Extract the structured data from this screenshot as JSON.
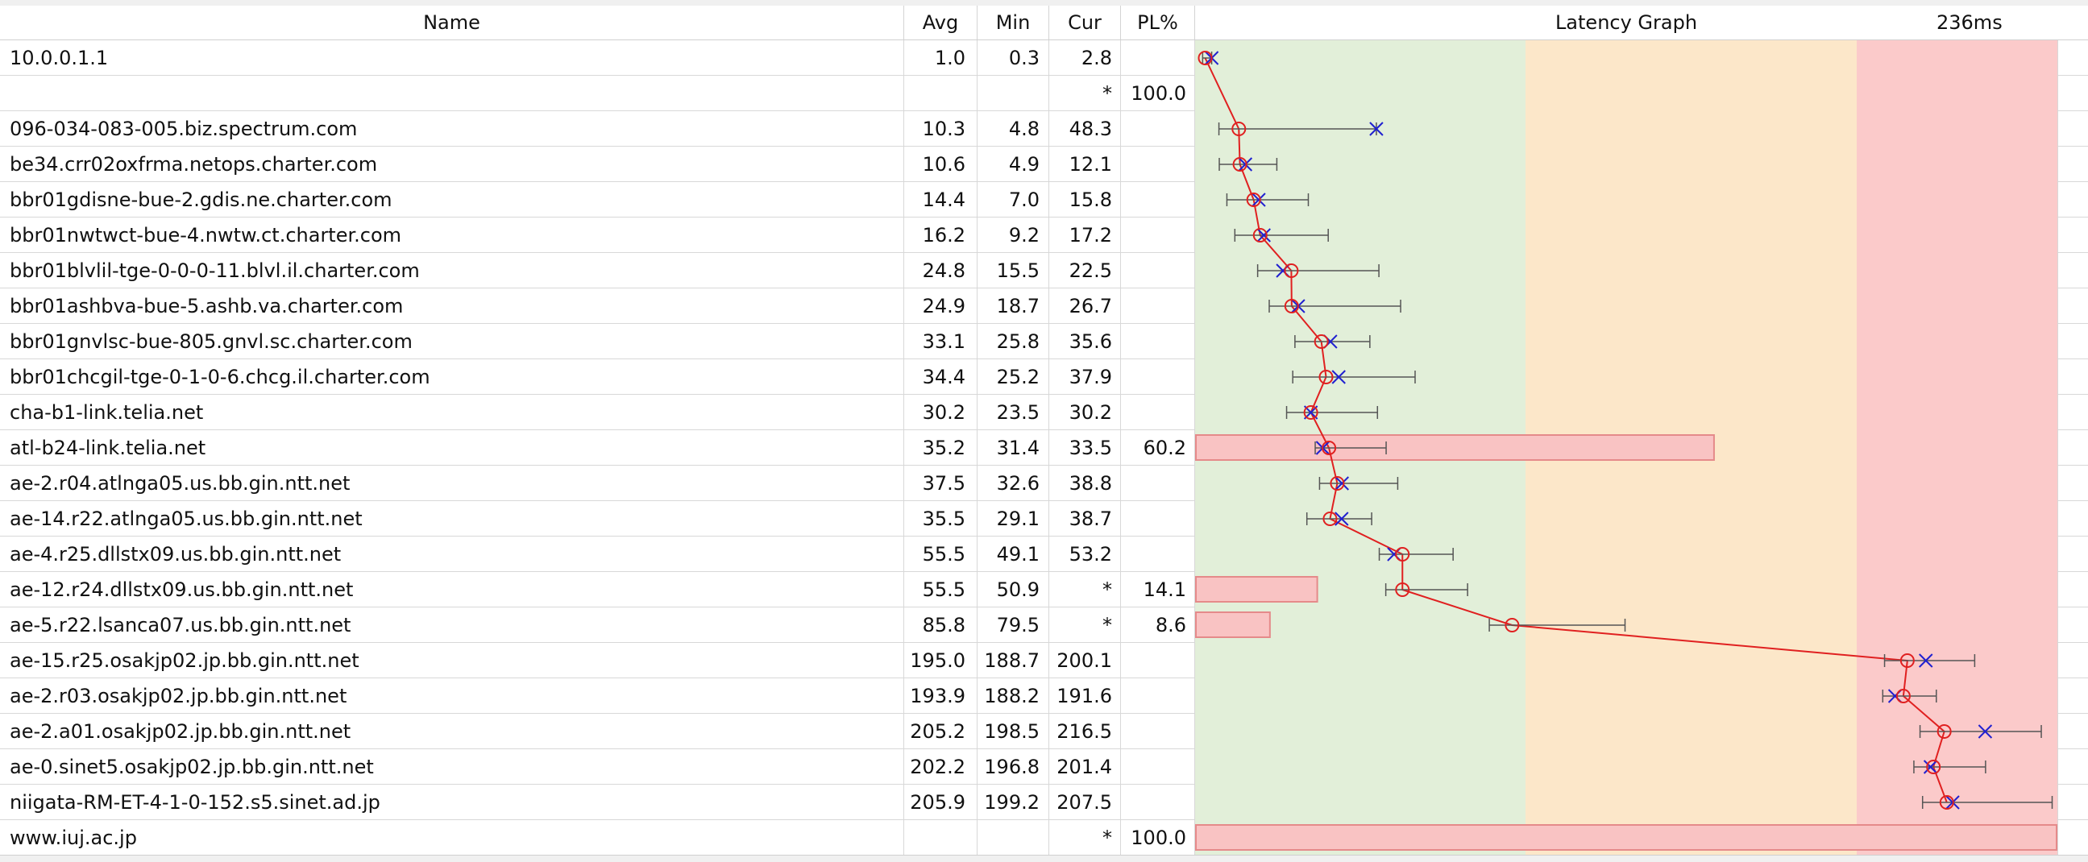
{
  "header": {
    "name": "Name",
    "avg": "Avg",
    "min": "Min",
    "cur": "Cur",
    "pl": "PL%",
    "graph": "Latency Graph",
    "scale": "236ms"
  },
  "graph": {
    "max_ms": 236,
    "band_colors": {
      "good": "#e2efd9",
      "warn": "#fce7c9",
      "bad": "#fbcaca"
    },
    "band_limits_ms": [
      100,
      200,
      236
    ],
    "loss_bar_color": "#f9c3c3",
    "loss_bar_border": "#e58a8a",
    "avg_marker_color": "#e02020",
    "cur_marker_color": "#2020d0",
    "whisker_color": "#555555"
  },
  "hops": [
    {
      "name": "10.0.0.1.1",
      "avg": "1.0",
      "min": "0.3",
      "cur": "2.8",
      "pl": "",
      "avg_ms": 1.0,
      "min_ms": 0.3,
      "max_ms": 2.8,
      "cur_ms": 2.8,
      "pl_pct": 0
    },
    {
      "name": "",
      "avg": "",
      "min": "",
      "cur": "*",
      "pl": "100.0",
      "avg_ms": null,
      "min_ms": null,
      "max_ms": null,
      "cur_ms": null,
      "pl_pct": 100,
      "no_bar": true
    },
    {
      "name": "096-034-083-005.biz.spectrum.com",
      "avg": "10.3",
      "min": "4.8",
      "cur": "48.3",
      "pl": "",
      "avg_ms": 10.3,
      "min_ms": 4.8,
      "max_ms": 48.3,
      "cur_ms": 48.3,
      "pl_pct": 0
    },
    {
      "name": "be34.crr02oxfrma.netops.charter.com",
      "avg": "10.6",
      "min": "4.9",
      "cur": "12.1",
      "pl": "",
      "avg_ms": 10.6,
      "min_ms": 4.9,
      "max_ms": 20.8,
      "cur_ms": 12.1,
      "pl_pct": 0
    },
    {
      "name": "bbr01gdisne-bue-2.gdis.ne.charter.com",
      "avg": "14.4",
      "min": "7.0",
      "cur": "15.8",
      "pl": "",
      "avg_ms": 14.4,
      "min_ms": 7.0,
      "max_ms": 29.5,
      "cur_ms": 15.8,
      "pl_pct": 0
    },
    {
      "name": "bbr01nwtwct-bue-4.nwtw.ct.charter.com",
      "avg": "16.2",
      "min": "9.2",
      "cur": "17.2",
      "pl": "",
      "avg_ms": 16.2,
      "min_ms": 9.2,
      "max_ms": 35.0,
      "cur_ms": 17.2,
      "pl_pct": 0
    },
    {
      "name": "bbr01blvlil-tge-0-0-0-11.blvl.il.charter.com",
      "avg": "24.8",
      "min": "15.5",
      "cur": "22.5",
      "pl": "",
      "avg_ms": 24.8,
      "min_ms": 15.5,
      "max_ms": 49.0,
      "cur_ms": 22.5,
      "pl_pct": 0
    },
    {
      "name": "bbr01ashbva-bue-5.ashb.va.charter.com",
      "avg": "24.9",
      "min": "18.7",
      "cur": "26.7",
      "pl": "",
      "avg_ms": 24.9,
      "min_ms": 18.7,
      "max_ms": 55.0,
      "cur_ms": 26.7,
      "pl_pct": 0
    },
    {
      "name": "bbr01gnvlsc-bue-805.gnvl.sc.charter.com",
      "avg": "33.1",
      "min": "25.8",
      "cur": "35.6",
      "pl": "",
      "avg_ms": 33.1,
      "min_ms": 25.8,
      "max_ms": 46.5,
      "cur_ms": 35.6,
      "pl_pct": 0
    },
    {
      "name": "bbr01chcgil-tge-0-1-0-6.chcg.il.charter.com",
      "avg": "34.4",
      "min": "25.2",
      "cur": "37.9",
      "pl": "",
      "avg_ms": 34.4,
      "min_ms": 25.2,
      "max_ms": 59.0,
      "cur_ms": 37.9,
      "pl_pct": 0
    },
    {
      "name": "cha-b1-link.telia.net",
      "avg": "30.2",
      "min": "23.5",
      "cur": "30.2",
      "pl": "",
      "avg_ms": 30.2,
      "min_ms": 23.5,
      "max_ms": 48.6,
      "cur_ms": 30.2,
      "pl_pct": 0
    },
    {
      "name": "atl-b24-link.telia.net",
      "avg": "35.2",
      "min": "31.4",
      "cur": "33.5",
      "pl": "60.2",
      "avg_ms": 35.2,
      "min_ms": 31.4,
      "max_ms": 51.0,
      "cur_ms": 33.5,
      "pl_pct": 60.2
    },
    {
      "name": "ae-2.r04.atlnga05.us.bb.gin.ntt.net",
      "avg": "37.5",
      "min": "32.6",
      "cur": "38.8",
      "pl": "",
      "avg_ms": 37.5,
      "min_ms": 32.6,
      "max_ms": 54.2,
      "cur_ms": 38.8,
      "pl_pct": 0
    },
    {
      "name": "ae-14.r22.atlnga05.us.bb.gin.ntt.net",
      "avg": "35.5",
      "min": "29.1",
      "cur": "38.7",
      "pl": "",
      "avg_ms": 35.5,
      "min_ms": 29.1,
      "max_ms": 47.0,
      "cur_ms": 38.7,
      "pl_pct": 0
    },
    {
      "name": "ae-4.r25.dllstx09.us.bb.gin.ntt.net",
      "avg": "55.5",
      "min": "49.1",
      "cur": "53.2",
      "pl": "",
      "avg_ms": 55.5,
      "min_ms": 49.1,
      "max_ms": 69.5,
      "cur_ms": 53.2,
      "pl_pct": 0
    },
    {
      "name": "ae-12.r24.dllstx09.us.bb.gin.ntt.net",
      "avg": "55.5",
      "min": "50.9",
      "cur": "*",
      "pl": "14.1",
      "avg_ms": 55.5,
      "min_ms": 50.9,
      "max_ms": 73.5,
      "cur_ms": null,
      "pl_pct": 14.1
    },
    {
      "name": "ae-5.r22.lsanca07.us.bb.gin.ntt.net",
      "avg": "85.8",
      "min": "79.5",
      "cur": "*",
      "pl": "8.6",
      "avg_ms": 85.8,
      "min_ms": 79.5,
      "max_ms": 117.0,
      "cur_ms": null,
      "pl_pct": 8.6
    },
    {
      "name": "ae-15.r25.osakjp02.jp.bb.gin.ntt.net",
      "avg": "195.0",
      "min": "188.7",
      "cur": "200.1",
      "pl": "",
      "avg_ms": 195.0,
      "min_ms": 188.7,
      "max_ms": 213.6,
      "cur_ms": 200.1,
      "pl_pct": 0
    },
    {
      "name": "ae-2.r03.osakjp02.jp.bb.gin.ntt.net",
      "avg": "193.9",
      "min": "188.2",
      "cur": "191.6",
      "pl": "",
      "avg_ms": 193.9,
      "min_ms": 188.2,
      "max_ms": 203.0,
      "cur_ms": 191.6,
      "pl_pct": 0
    },
    {
      "name": "ae-2.a01.osakjp02.jp.bb.gin.ntt.net",
      "avg": "205.2",
      "min": "198.5",
      "cur": "216.5",
      "pl": "",
      "avg_ms": 205.2,
      "min_ms": 198.5,
      "max_ms": 232.0,
      "cur_ms": 216.5,
      "pl_pct": 0
    },
    {
      "name": "ae-0.sinet5.osakjp02.jp.bb.gin.ntt.net",
      "avg": "202.2",
      "min": "196.8",
      "cur": "201.4",
      "pl": "",
      "avg_ms": 202.2,
      "min_ms": 196.8,
      "max_ms": 216.6,
      "cur_ms": 201.4,
      "pl_pct": 0
    },
    {
      "name": "niigata-RM-ET-4-1-0-152.s5.sinet.ad.jp",
      "avg": "205.9",
      "min": "199.2",
      "cur": "207.5",
      "pl": "",
      "avg_ms": 205.9,
      "min_ms": 199.2,
      "max_ms": 235.0,
      "cur_ms": 207.5,
      "pl_pct": 0
    },
    {
      "name": "www.iuj.ac.jp",
      "avg": "",
      "min": "",
      "cur": "*",
      "pl": "100.0",
      "avg_ms": null,
      "min_ms": null,
      "max_ms": null,
      "cur_ms": null,
      "pl_pct": 100
    }
  ]
}
